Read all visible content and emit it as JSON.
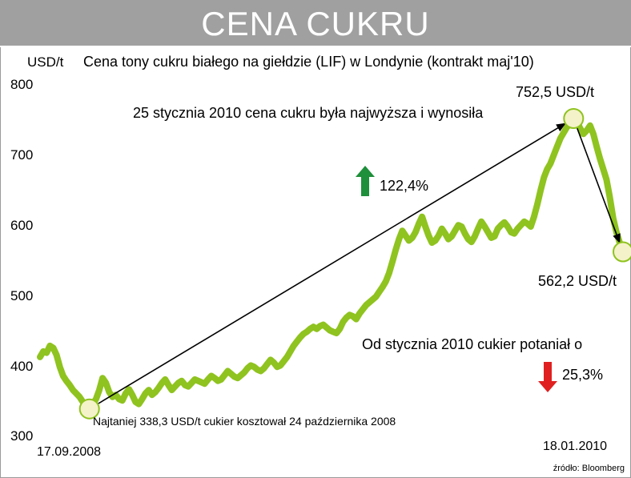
{
  "header": {
    "title": "CENA CUKRU"
  },
  "chart_data": {
    "type": "line",
    "title": "CENA CUKRU",
    "subtitle": "Cena tony cukru białego na giełdzie (LIF) w Londynie (kontrakt maj'10)",
    "ylabel": "USD/t",
    "ylim": [
      300,
      800
    ],
    "yticks": [
      800,
      700,
      600,
      500,
      400,
      300
    ],
    "ytick_labels": [
      "800",
      "700",
      "600",
      "500",
      "400",
      "300"
    ],
    "x_start_label": "17.09.2008",
    "x_end_label": "18.01.2010",
    "line_color": "#8fc31f",
    "series": [
      {
        "values": [
          412,
          420,
          418,
          428,
          425,
          415,
          398,
          385,
          378,
          372,
          365,
          360,
          355,
          348,
          342,
          338,
          345,
          352,
          365,
          382,
          375,
          362,
          355,
          358,
          352,
          350,
          360,
          366,
          358,
          348,
          345,
          352,
          360,
          365,
          358,
          362,
          368,
          375,
          380,
          372,
          365,
          370,
          375,
          378,
          372,
          370,
          375,
          380,
          378,
          376,
          374,
          380,
          385,
          382,
          378,
          380,
          386,
          392,
          388,
          384,
          382,
          386,
          390,
          396,
          400,
          398,
          394,
          392,
          396,
          402,
          408,
          404,
          398,
          400,
          406,
          412,
          420,
          428,
          434,
          440,
          445,
          448,
          452,
          455,
          452,
          456,
          458,
          454,
          450,
          448,
          446,
          452,
          462,
          468,
          472,
          470,
          466,
          474,
          480,
          486,
          490,
          494,
          498,
          505,
          512,
          520,
          532,
          548,
          565,
          580,
          592,
          585,
          578,
          582,
          590,
          602,
          612,
          598,
          585,
          575,
          578,
          585,
          595,
          588,
          580,
          584,
          592,
          600,
          598,
          588,
          580,
          576,
          584,
          595,
          605,
          598,
          590,
          582,
          584,
          595,
          600,
          604,
          598,
          590,
          588,
          595,
          600,
          605,
          602,
          598,
          612,
          630,
          650,
          668,
          680,
          688,
          700,
          712,
          724,
          732,
          740,
          745,
          752,
          748,
          738,
          730,
          735,
          742,
          730,
          712,
          695,
          680,
          665,
          640,
          610,
          590,
          575,
          562
        ]
      }
    ],
    "annotations": {
      "max_value": "752,5 USD/t",
      "max_text": "25 stycznia 2010 cena cukru była najwyższa i wynosiła",
      "rise_pct": "122,4%",
      "last_value": "562,2 USD/t",
      "fall_text": "Od stycznia 2010 cukier potaniał o",
      "fall_pct": "25,3%",
      "min_text": "Najtaniej 338,3 USD/t cukier kosztował 24 października 2008"
    },
    "source": "źródło: Bloomberg"
  }
}
